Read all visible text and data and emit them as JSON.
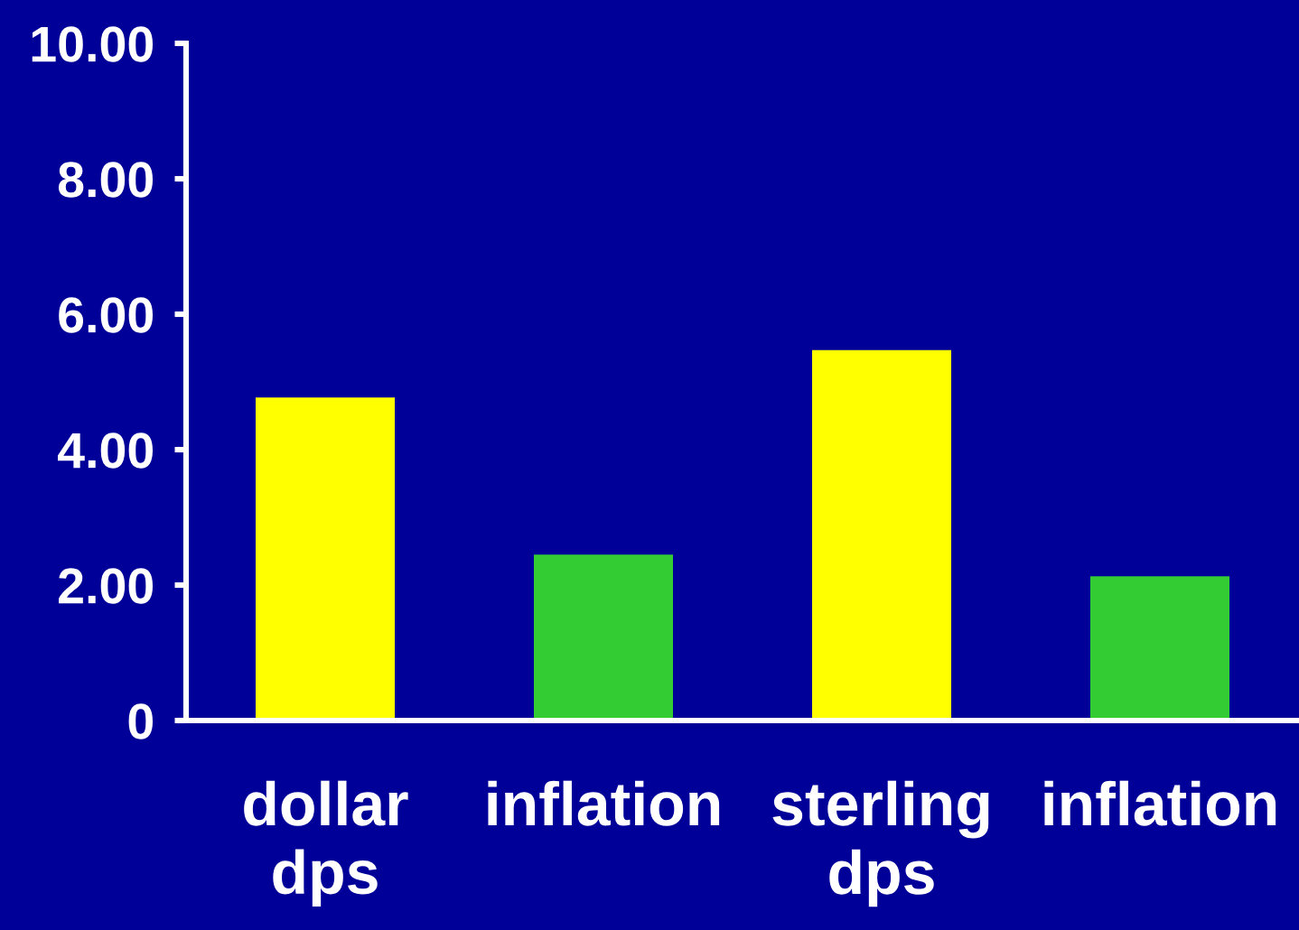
{
  "chart_data": {
    "type": "bar",
    "categories": [
      "dollar dps",
      "inflation",
      "sterling dps",
      "inflation"
    ],
    "values": [
      4.77,
      2.45,
      5.47,
      2.13
    ],
    "colors": [
      "#ffff00",
      "#33cc33",
      "#ffff00",
      "#33cc33"
    ],
    "ylim": [
      0,
      10
    ],
    "yticks": [
      0,
      {
        "value": 2,
        "label": "2.00"
      },
      {
        "value": 4,
        "label": "4.00"
      },
      {
        "value": 6,
        "label": "6.00"
      },
      {
        "value": 8,
        "label": "8.00"
      },
      {
        "value": 10,
        "label": "10.00"
      }
    ]
  }
}
